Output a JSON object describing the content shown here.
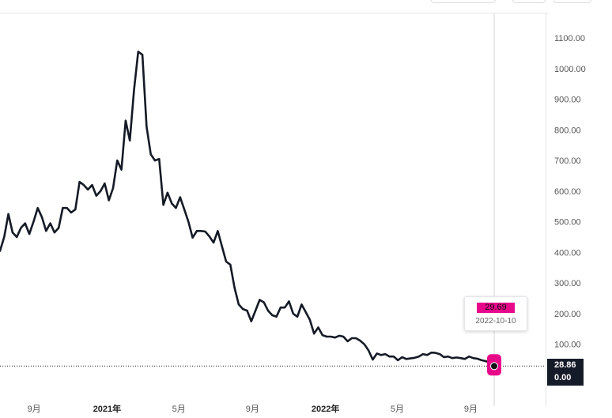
{
  "chart_data": {
    "type": "line",
    "title": "",
    "xlabel": "",
    "ylabel": "",
    "ylim": [
      0,
      1100
    ],
    "y_ticks": [
      "1100.00",
      "1000.00",
      "900.00",
      "800.00",
      "700.00",
      "600.00",
      "500.00",
      "400.00",
      "300.00",
      "200.00",
      "100.00"
    ],
    "x_ticks": [
      {
        "label": "9月",
        "date": "2020-09-01",
        "bold": false
      },
      {
        "label": "2021年",
        "date": "2021-01-01",
        "bold": true
      },
      {
        "label": "5月",
        "date": "2021-05-01",
        "bold": false
      },
      {
        "label": "9月",
        "date": "2021-09-01",
        "bold": false
      },
      {
        "label": "2022年",
        "date": "2022-01-01",
        "bold": true
      },
      {
        "label": "5月",
        "date": "2022-05-01",
        "bold": false
      },
      {
        "label": "9月",
        "date": "2022-09-01",
        "bold": false
      }
    ],
    "grid": false,
    "line_color": "#151a26",
    "series": [
      {
        "x": [
          "2020-07-06",
          "2020-07-13",
          "2020-07-20",
          "2020-07-27",
          "2020-08-03",
          "2020-08-10",
          "2020-08-17",
          "2020-08-24",
          "2020-08-31",
          "2020-09-07",
          "2020-09-14",
          "2020-09-21",
          "2020-09-28",
          "2020-10-05",
          "2020-10-12",
          "2020-10-19",
          "2020-10-26",
          "2020-11-02",
          "2020-11-09",
          "2020-11-16",
          "2020-11-23",
          "2020-11-30",
          "2020-12-07",
          "2020-12-14",
          "2020-12-21",
          "2020-12-28",
          "2021-01-04",
          "2021-01-11",
          "2021-01-18",
          "2021-01-25",
          "2021-02-01",
          "2021-02-08",
          "2021-02-15",
          "2021-02-22",
          "2021-03-01",
          "2021-03-08",
          "2021-03-15",
          "2021-03-22",
          "2021-03-29",
          "2021-04-05",
          "2021-04-12",
          "2021-04-19",
          "2021-04-26",
          "2021-05-03",
          "2021-05-10",
          "2021-05-17",
          "2021-05-24",
          "2021-05-31",
          "2021-06-07",
          "2021-06-14",
          "2021-06-21",
          "2021-06-28",
          "2021-07-05",
          "2021-07-12",
          "2021-07-19",
          "2021-07-26",
          "2021-08-02",
          "2021-08-09",
          "2021-08-16",
          "2021-08-23",
          "2021-08-30",
          "2021-09-06",
          "2021-09-13",
          "2021-09-20",
          "2021-09-27",
          "2021-10-04",
          "2021-10-11",
          "2021-10-18",
          "2021-10-25",
          "2021-11-01",
          "2021-11-08",
          "2021-11-15",
          "2021-11-22",
          "2021-11-29",
          "2021-12-06",
          "2021-12-13",
          "2021-12-20",
          "2021-12-27",
          "2022-01-03",
          "2022-01-10",
          "2022-01-17",
          "2022-01-24",
          "2022-01-31",
          "2022-02-07",
          "2022-02-14",
          "2022-02-21",
          "2022-02-28",
          "2022-03-07",
          "2022-03-14",
          "2022-03-21",
          "2022-03-28",
          "2022-04-04",
          "2022-04-11",
          "2022-04-18",
          "2022-04-25",
          "2022-05-02",
          "2022-05-09",
          "2022-05-16",
          "2022-05-23",
          "2022-05-30",
          "2022-06-06",
          "2022-06-13",
          "2022-06-20",
          "2022-06-27",
          "2022-07-04",
          "2022-07-11",
          "2022-07-18",
          "2022-07-25",
          "2022-08-01",
          "2022-08-08",
          "2022-08-15",
          "2022-08-22",
          "2022-08-29",
          "2022-09-05",
          "2022-09-12",
          "2022-09-19",
          "2022-09-26",
          "2022-10-03",
          "2022-10-10"
        ],
        "values": [
          405,
          450,
          525,
          465,
          450,
          480,
          495,
          460,
          500,
          545,
          515,
          470,
          495,
          465,
          480,
          545,
          545,
          530,
          540,
          630,
          620,
          605,
          620,
          585,
          600,
          625,
          570,
          610,
          700,
          670,
          830,
          765,
          930,
          1055,
          1045,
          810,
          720,
          700,
          705,
          555,
          595,
          560,
          545,
          580,
          540,
          500,
          448,
          470,
          470,
          468,
          452,
          432,
          470,
          420,
          370,
          360,
          285,
          230,
          215,
          210,
          175,
          210,
          245,
          237,
          210,
          195,
          190,
          220,
          220,
          240,
          200,
          190,
          230,
          205,
          180,
          135,
          155,
          130,
          125,
          125,
          122,
          128,
          125,
          110,
          120,
          120,
          112,
          100,
          80,
          50,
          70,
          65,
          68,
          60,
          60,
          48,
          58,
          52,
          54,
          56,
          60,
          68,
          65,
          73,
          72,
          68,
          58,
          60,
          55,
          57,
          55,
          52,
          60,
          55,
          53,
          48,
          45,
          40,
          28.86
        ]
      }
    ],
    "crosshair": {
      "value": "29.69",
      "date": "2022-10-10"
    },
    "last_price": {
      "value": "28.86",
      "secondary": "0.00",
      "color": "#e8088a"
    }
  }
}
